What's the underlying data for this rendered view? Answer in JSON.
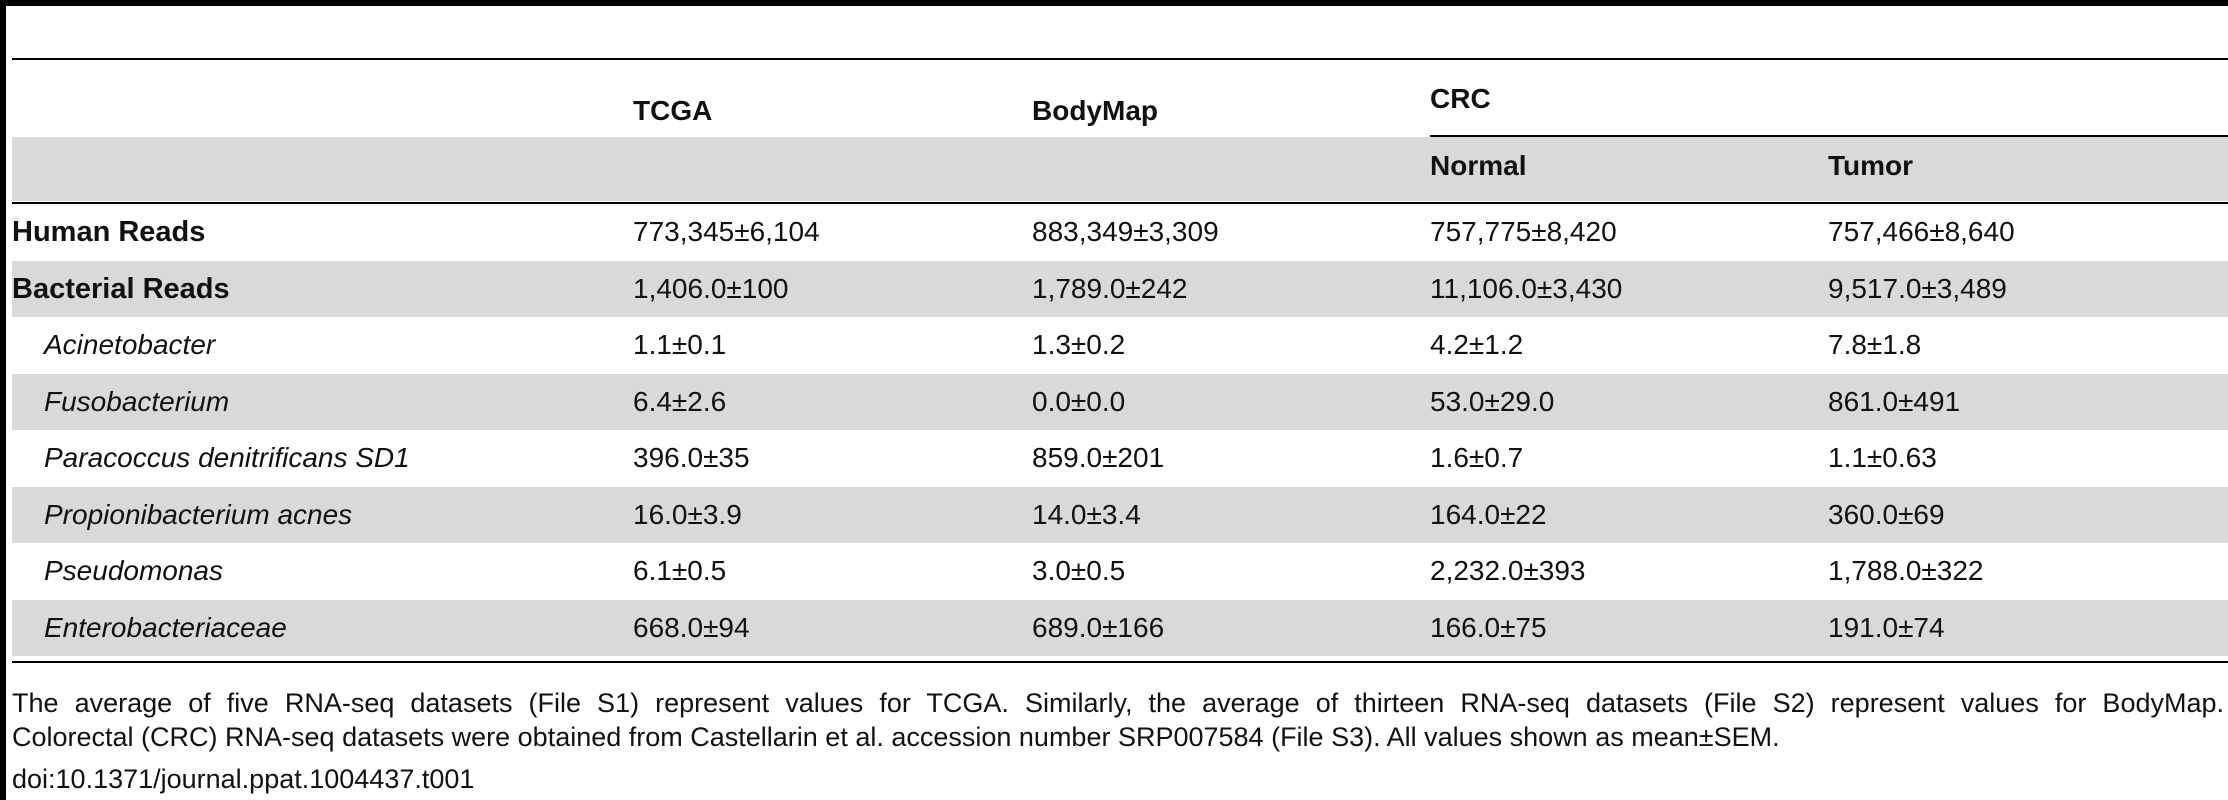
{
  "table": {
    "columns": {
      "tcga": "TCGA",
      "bodymap": "BodyMap",
      "crc": "CRC",
      "normal": "Normal",
      "tumor": "Tumor"
    },
    "rows": [
      {
        "label": "Human Reads",
        "tcga": "773,345±6,104",
        "bodymap": "883,349±3,309",
        "normal": "757,775±8,420",
        "tumor": "757,466±8,640"
      },
      {
        "label": "Bacterial Reads",
        "tcga": "1,406.0±100",
        "bodymap": "1,789.0±242",
        "normal": "11,106.0±3,430",
        "tumor": "9,517.0±3,489"
      },
      {
        "label": "Acinetobacter",
        "tcga": "1.1±0.1",
        "bodymap": "1.3±0.2",
        "normal": "4.2±1.2",
        "tumor": "7.8±1.8"
      },
      {
        "label": "Fusobacterium",
        "tcga": "6.4±2.6",
        "bodymap": "0.0±0.0",
        "normal": "53.0±29.0",
        "tumor": "861.0±491"
      },
      {
        "label": "Paracoccus denitrificans SD1",
        "tcga": "396.0±35",
        "bodymap": "859.0±201",
        "normal": "1.6±0.7",
        "tumor": "1.1±0.63"
      },
      {
        "label": "Propionibacterium acnes",
        "tcga": "16.0±3.9",
        "bodymap": "14.0±3.4",
        "normal": "164.0±22",
        "tumor": "360.0±69"
      },
      {
        "label": "Pseudomonas",
        "tcga": "6.1±0.5",
        "bodymap": "3.0±0.5",
        "normal": "2,232.0±393",
        "tumor": "1,788.0±322"
      },
      {
        "label": "Enterobacteriaceae",
        "tcga": "668.0±94",
        "bodymap": "689.0±166",
        "normal": "166.0±75",
        "tumor": "191.0±74"
      }
    ]
  },
  "footnote": {
    "line1": "The average of five RNA-seq datasets (File S1) represent values for TCGA. Similarly, the average of thirteen RNA-seq datasets (File S2) represent values for BodyMap.",
    "line2": "Colorectal (CRC) RNA-seq datasets were obtained from Castellarin et al. accession number SRP007584 (File S3). All values shown as mean±SEM.",
    "doi": "doi:10.1371/journal.ppat.1004437.t001"
  }
}
